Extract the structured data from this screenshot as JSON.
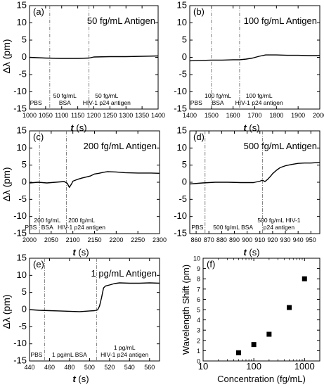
{
  "chart_data": [
    {
      "type": "line",
      "panel_label": "(a)",
      "title": "50 fg/mL Antigen",
      "xlabel_var": "t",
      "xlabel_unit": " (s)",
      "ylabel": "Δλ (pm)",
      "xlim": [
        1000,
        1400
      ],
      "ylim": [
        -15,
        15
      ],
      "xticks": [
        1000,
        1050,
        1100,
        1150,
        1200,
        1250,
        1300,
        1350,
        1400
      ],
      "yticks": [
        -15,
        -10,
        -5,
        0,
        5,
        10,
        15
      ],
      "markers": [
        1063,
        1185
      ],
      "regions": [
        {
          "x": 1020,
          "lines": [
            "PBS"
          ]
        },
        {
          "x": 1110,
          "lines": [
            "50 fg/mL",
            "BSA"
          ]
        },
        {
          "x": 1240,
          "lines": [
            "50 fg/mL",
            "HIV-1 p24 antigen"
          ]
        }
      ],
      "series": [
        {
          "x": [
            1000,
            1050,
            1100,
            1150,
            1185,
            1200,
            1250,
            1300,
            1350,
            1400
          ],
          "y": [
            0,
            -0.2,
            -0.3,
            -0.3,
            -0.2,
            0.1,
            0.2,
            0.2,
            0.3,
            0.4
          ]
        }
      ]
    },
    {
      "type": "line",
      "panel_label": "(b)",
      "title": "100 fg/mL Antigen",
      "xlabel_var": "t",
      "xlabel_unit": " (s)",
      "ylabel": "",
      "xlim": [
        1400,
        2000
      ],
      "ylim": [
        -15,
        15
      ],
      "xticks": [
        1400,
        1500,
        1600,
        1700,
        1800,
        1900,
        2000
      ],
      "yticks": [
        -15,
        -10,
        -5,
        0,
        5,
        10,
        15
      ],
      "markers": [
        1500,
        1630
      ],
      "regions": [
        {
          "x": 1430,
          "lines": [
            "PBS"
          ]
        },
        {
          "x": 1530,
          "lines": [
            "100 fg/mL",
            "BSA"
          ]
        },
        {
          "x": 1720,
          "lines": [
            "100 fg/mL",
            "HIV-1 p24 antigen"
          ]
        }
      ],
      "series": [
        {
          "x": [
            1400,
            1450,
            1500,
            1550,
            1600,
            1630,
            1660,
            1690,
            1720,
            1750,
            1800,
            1850,
            1900,
            1950,
            2000
          ],
          "y": [
            -1,
            -0.9,
            -0.8,
            -0.8,
            -0.7,
            -0.7,
            -0.5,
            -0.2,
            0.3,
            0.7,
            0.7,
            0.6,
            0.6,
            0.5,
            0.5
          ]
        }
      ]
    },
    {
      "type": "line",
      "panel_label": "(c)",
      "title": "200 fg/mL Antigen",
      "xlabel_var": "t",
      "xlabel_unit": " (s)",
      "ylabel": "Δλ (pm)",
      "xlim": [
        2000,
        2300
      ],
      "ylim": [
        -15,
        15
      ],
      "xticks": [
        2000,
        2050,
        2100,
        2150,
        2200,
        2250,
        2300
      ],
      "yticks": [
        -15,
        -10,
        -5,
        0,
        5,
        10,
        15
      ],
      "markers": [
        2023,
        2085
      ],
      "regions": [
        {
          "x": 2003,
          "lines": [
            "PBS"
          ]
        },
        {
          "x": 2041,
          "lines": [
            "200 fg/mL",
            "BSA"
          ]
        },
        {
          "x": 2120,
          "lines": [
            "200 fg/mL",
            "HIV-1 p24 antigen"
          ]
        }
      ],
      "series": [
        {
          "x": [
            2000,
            2020,
            2040,
            2060,
            2080,
            2087,
            2092,
            2097,
            2100,
            2110,
            2120,
            2130,
            2140,
            2150,
            2160,
            2170,
            2180,
            2200,
            2220,
            2250,
            2280,
            2300
          ],
          "y": [
            -0.2,
            0,
            -0.2,
            0,
            0.2,
            -0.3,
            -1.5,
            -0.5,
            0.3,
            0.8,
            1.2,
            1.5,
            1.8,
            2.4,
            2.6,
            2.9,
            3.1,
            3.0,
            2.8,
            2.7,
            2.7,
            2.6
          ]
        }
      ]
    },
    {
      "type": "line",
      "panel_label": "(d)",
      "title": "500 fg/mL Antigen",
      "xlabel_var": "t",
      "xlabel_unit": " (s)",
      "ylabel": "",
      "xlim": [
        855,
        957
      ],
      "ylim": [
        -15,
        15
      ],
      "xticks": [
        860,
        870,
        880,
        890,
        900,
        910,
        920,
        930,
        940,
        950
      ],
      "yticks": [
        -15,
        -10,
        -5,
        0,
        5,
        10,
        15
      ],
      "markers": [
        867,
        912
      ],
      "regions": [
        {
          "x": 861,
          "lines": [
            "PBS"
          ]
        },
        {
          "x": 889,
          "lines": [
            "500 fg/mL BSA"
          ]
        },
        {
          "x": 925,
          "lines": [
            "500 fg/mL HIV-1",
            "p24 antigen"
          ]
        }
      ],
      "series": [
        {
          "x": [
            855,
            865,
            875,
            885,
            895,
            905,
            910,
            912,
            914,
            916,
            918,
            920,
            923,
            926,
            930,
            935,
            940,
            945,
            950,
            957
          ],
          "y": [
            -0.5,
            -0.2,
            0,
            0,
            -0.1,
            -0.1,
            0.3,
            0.6,
            0.2,
            0.8,
            1.6,
            2.5,
            3.5,
            4.3,
            4.8,
            5.2,
            5.5,
            5.6,
            5.6,
            5.8
          ]
        }
      ]
    },
    {
      "type": "line",
      "panel_label": "(e)",
      "title": "1 pg/mL Antigen",
      "xlabel_var": "t",
      "xlabel_unit": " (s)",
      "ylabel": "Δλ (pm)",
      "xlim": [
        440,
        570
      ],
      "ylim": [
        -15,
        15
      ],
      "xticks": [
        440,
        460,
        480,
        500,
        520,
        540,
        560
      ],
      "yticks": [
        -15,
        -10,
        -5,
        0,
        5,
        10,
        15
      ],
      "markers": [
        455,
        507
      ],
      "regions": [
        {
          "x": 447,
          "lines": [
            "PBS"
          ]
        },
        {
          "x": 480,
          "lines": [
            "1 pg/mL BSA"
          ]
        },
        {
          "x": 535,
          "lines": [
            "1 pg/mL",
            "HIV-1 p24 antigen"
          ]
        }
      ],
      "series": [
        {
          "x": [
            440,
            450,
            460,
            470,
            480,
            490,
            500,
            505,
            508,
            510,
            512,
            514,
            516,
            520,
            525,
            530,
            540,
            550,
            560,
            570
          ],
          "y": [
            0,
            -0.2,
            -0.3,
            -0.4,
            -0.5,
            -0.6,
            -0.4,
            -0.3,
            -0.1,
            1,
            3.5,
            6.3,
            6.9,
            7.2,
            7.6,
            7.8,
            7.7,
            7.7,
            7.8,
            7.7
          ]
        }
      ]
    },
    {
      "type": "scatter",
      "panel_label": "(f)",
      "xlabel": "Concentration (fg/mL)",
      "ylabel": "Wavelength Shift (pm)",
      "xscale": "log",
      "xlim": [
        10,
        2000
      ],
      "ylim": [
        0,
        10
      ],
      "xticks": [
        10,
        100,
        1000
      ],
      "yticks": [
        0,
        1,
        2,
        3,
        4,
        5,
        6,
        7,
        8,
        9,
        10
      ],
      "series": [
        {
          "x": [
            50,
            100,
            200,
            500,
            1000
          ],
          "y": [
            0.8,
            1.6,
            2.6,
            5.2,
            8.0
          ]
        }
      ]
    }
  ]
}
